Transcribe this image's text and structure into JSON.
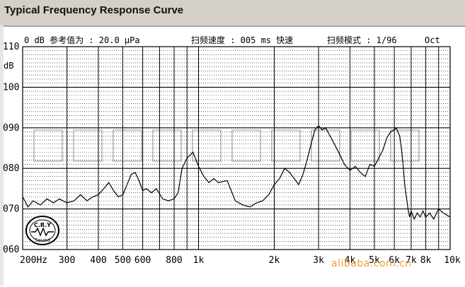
{
  "window": {
    "title": "Typical Frequency Response Curve"
  },
  "header": {
    "reference": "0 dB 参考值为 : 20.0 μPa",
    "sweep_speed": "扫频速度 : 005 ms 快速",
    "sweep_mode": "扫频模式 : 1/96",
    "oct": "Oct"
  },
  "logo": {
    "top_text": "C.R.Y",
    "bottom_text": "Sound"
  },
  "watermark": "alibaba.com.cn",
  "colors": {
    "background": "#ffffff",
    "grid": "#000000",
    "curve": "#000000",
    "watermark": "#e8a13a",
    "titlebar": "#d4d0c8"
  },
  "chart_data": {
    "type": "line",
    "title": "Typical Frequency Response Curve",
    "xlabel": "",
    "ylabel": "dB",
    "x_scale": "log",
    "xlim": [
      200,
      10000
    ],
    "ylim": [
      60,
      110
    ],
    "grid": true,
    "y_ticks": [
      {
        "value": 110,
        "label": "110"
      },
      {
        "value": 100,
        "label": "100"
      },
      {
        "value": 90,
        "label": "090"
      },
      {
        "value": 80,
        "label": "080"
      },
      {
        "value": 70,
        "label": "070"
      },
      {
        "value": 60,
        "label": "060"
      }
    ],
    "x_ticks": [
      {
        "value": 200,
        "label": "200Hz"
      },
      {
        "value": 300,
        "label": "300"
      },
      {
        "value": 400,
        "label": "400"
      },
      {
        "value": 500,
        "label": "500"
      },
      {
        "value": 600,
        "label": "600"
      },
      {
        "value": 800,
        "label": "800"
      },
      {
        "value": 1000,
        "label": "1k"
      },
      {
        "value": 2000,
        "label": "2k"
      },
      {
        "value": 3000,
        "label": "3k"
      },
      {
        "value": 4000,
        "label": "4k"
      },
      {
        "value": 5000,
        "label": "5k"
      },
      {
        "value": 6000,
        "label": "6k"
      },
      {
        "value": 7000,
        "label": "7k"
      },
      {
        "value": 8000,
        "label": "8k"
      },
      {
        "value": 10000,
        "label": "10k"
      }
    ],
    "series": [
      {
        "x": [
          200,
          210,
          220,
          235,
          250,
          265,
          280,
          300,
          320,
          340,
          360,
          380,
          400,
          420,
          440,
          460,
          480,
          500,
          520,
          540,
          560,
          580,
          600,
          620,
          650,
          680,
          720,
          760,
          800,
          830,
          860,
          900,
          950,
          1000,
          1050,
          1100,
          1150,
          1200,
          1300,
          1400,
          1500,
          1600,
          1700,
          1800,
          1900,
          2000,
          2100,
          2200,
          2300,
          2400,
          2500,
          2600,
          2700,
          2800,
          2900,
          3000,
          3100,
          3200,
          3400,
          3600,
          3800,
          4000,
          4200,
          4400,
          4600,
          4800,
          5000,
          5200,
          5400,
          5600,
          5800,
          6000,
          6100,
          6200,
          6300,
          6400,
          6500,
          6600,
          6700,
          6800,
          6900,
          7000,
          7200,
          7400,
          7600,
          7800,
          8000,
          8300,
          8600,
          9000,
          9400,
          9700,
          10000
        ],
        "values": [
          73,
          70.5,
          72,
          71,
          72.5,
          71.5,
          72.5,
          71.5,
          72,
          73.5,
          72,
          73,
          73.5,
          75,
          76.5,
          74.5,
          73,
          73.5,
          76,
          78.5,
          79,
          77,
          74.5,
          75,
          74,
          75,
          72.5,
          72,
          72.5,
          74,
          80,
          82.5,
          84,
          80.5,
          78,
          76.5,
          77.5,
          76.5,
          77,
          72,
          71,
          70.5,
          71.5,
          72,
          73.5,
          76,
          77.5,
          80,
          79,
          77.5,
          76,
          78.5,
          82,
          86,
          89.5,
          90.5,
          89.5,
          90,
          87,
          84,
          81,
          79.5,
          80.5,
          79,
          78,
          81,
          80.5,
          82.5,
          84.5,
          87.5,
          89,
          89.5,
          90,
          89,
          88,
          85,
          81,
          76,
          73,
          70,
          68,
          69.5,
          67.5,
          69,
          68,
          69.5,
          68,
          69,
          67.5,
          70,
          69,
          68.5,
          68
        ]
      }
    ]
  }
}
